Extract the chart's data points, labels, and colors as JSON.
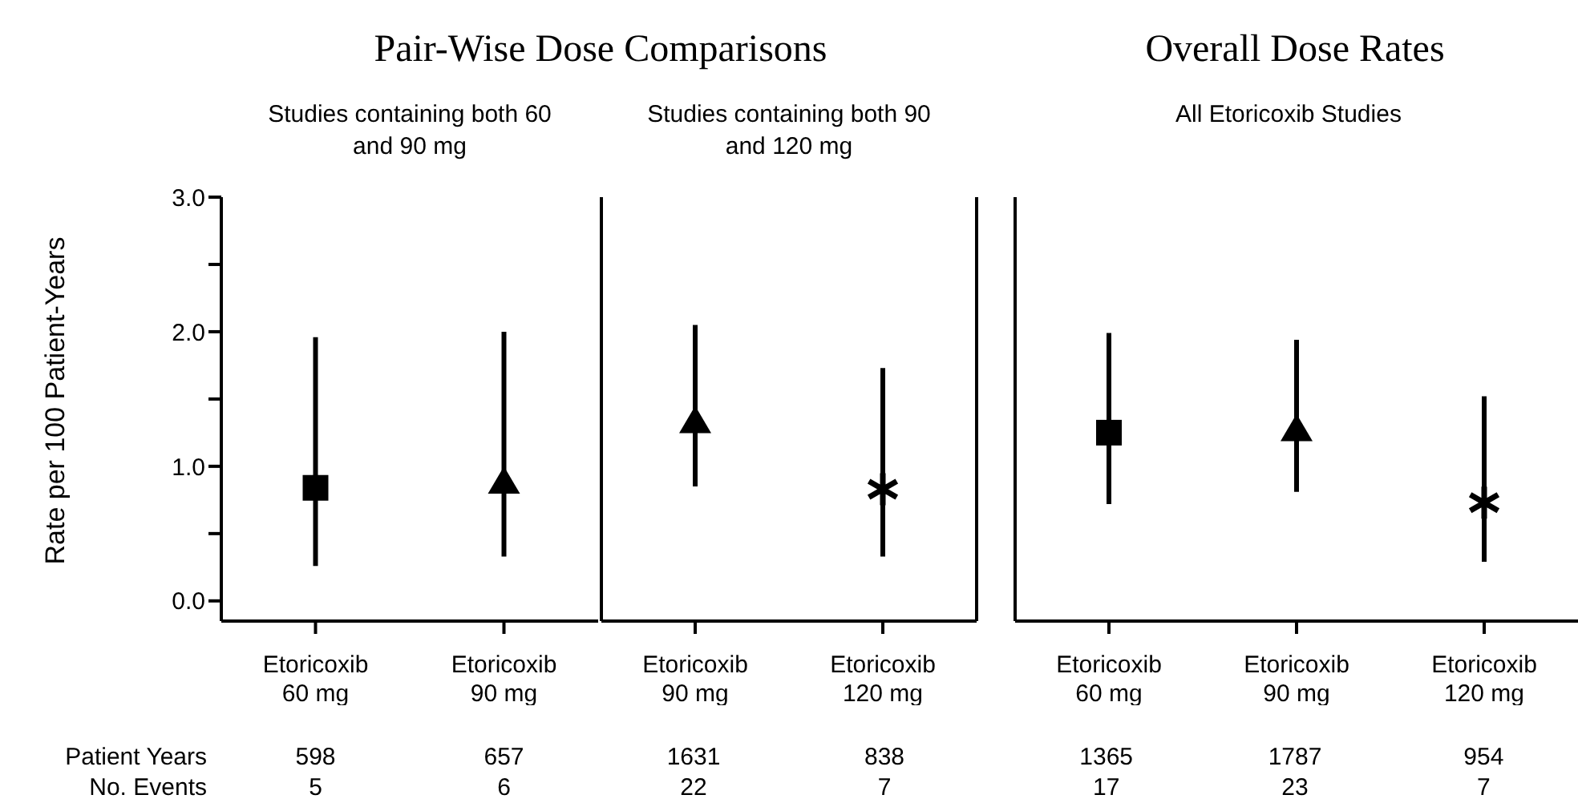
{
  "chart_data": [
    {
      "type": "scatter",
      "title": "Pair-Wise Dose Comparisons",
      "subtitle": "Studies containing both 60 and 90 mg",
      "ylabel": "Rate per 100 Patient-Years",
      "categories": [
        "Etoricoxib 60 mg",
        "Etoricoxib 90 mg"
      ],
      "series": [
        {
          "color": "#000000",
          "marker": "square",
          "values": [
            0.84,
            null
          ],
          "errors": [
            [
              0.26,
              1.96
            ],
            null
          ]
        },
        {
          "color": "#000000",
          "marker": "triangle",
          "values": [
            null,
            0.88
          ],
          "errors": [
            null,
            [
              0.33,
              2.0
            ]
          ]
        }
      ],
      "ylim": [
        -0.15,
        3.0
      ],
      "yticks": [
        {
          "value": 0,
          "label": "0.0"
        },
        {
          "value": 0.5,
          "label": null
        },
        {
          "value": 1,
          "label": "1.0"
        },
        {
          "value": 1.5,
          "label": null
        },
        {
          "value": 2,
          "label": "2.0"
        },
        {
          "value": 2.5,
          "label": null
        },
        {
          "value": 3,
          "label": "3.0"
        }
      ],
      "annotations": [
        "Patient Years",
        "No. Events",
        "598",
        "5",
        "657",
        "6"
      ]
    },
    {
      "type": "scatter",
      "subtitle": "Studies containing both 90 and 120 mg",
      "categories": [
        "Etoricoxib 90 mg",
        "Etoricoxib 120 mg"
      ],
      "series": [
        {
          "color": "#000000",
          "marker": "triangle",
          "values": [
            1.33,
            null
          ],
          "errors": [
            [
              0.85,
              2.05
            ],
            null
          ]
        },
        {
          "color": "#000000",
          "marker": "cross",
          "values": [
            null,
            0.83
          ],
          "errors": [
            null,
            [
              0.33,
              1.73
            ]
          ]
        }
      ],
      "ylim": [
        -0.15,
        3.0
      ],
      "tick_labels": "x",
      "annotations": [
        "1631",
        "22",
        "838",
        "7"
      ]
    },
    {
      "type": "scatter",
      "title": "Overall Dose Rates",
      "subtitle": "All Etoricoxib Studies",
      "categories": [
        "Etoricoxib 60 mg",
        "Etoricoxib 90 mg",
        "Etoricoxib 120 mg"
      ],
      "series": [
        {
          "color": "#000000",
          "marker": "square",
          "values": [
            1.25,
            null,
            null
          ],
          "errors": [
            [
              0.72,
              1.99
            ],
            null,
            null
          ]
        },
        {
          "color": "#000000",
          "marker": "triangle",
          "values": [
            null,
            1.27,
            null
          ],
          "errors": [
            null,
            [
              0.81,
              1.94
            ],
            null
          ]
        },
        {
          "color": "#000000",
          "marker": "cross",
          "values": [
            null,
            null,
            0.73
          ],
          "errors": [
            null,
            null,
            [
              0.29,
              1.52
            ]
          ]
        }
      ],
      "ylim": [
        -0.15,
        3.0
      ],
      "tick_labels": "x",
      "annotations": [
        "1365",
        "17",
        "1787",
        "23",
        "954",
        "7"
      ]
    }
  ]
}
